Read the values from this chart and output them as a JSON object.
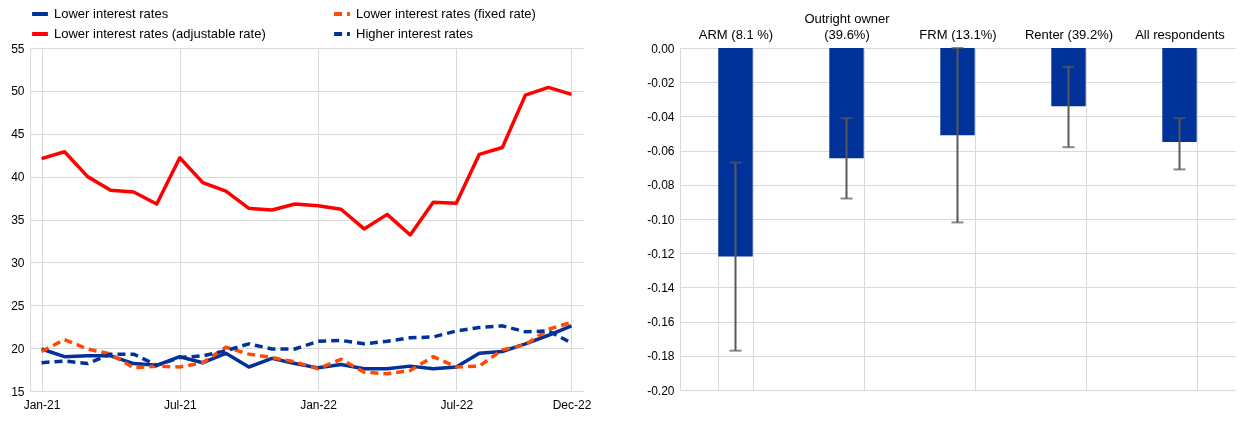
{
  "chart_data": [
    {
      "type": "line",
      "categories": [
        "Jan-21",
        null,
        null,
        null,
        null,
        null,
        "Jul-21",
        null,
        null,
        null,
        null,
        null,
        "Jan-22",
        null,
        null,
        null,
        null,
        null,
        "Jul-22",
        null,
        null,
        null,
        null,
        "Dec-22"
      ],
      "series": [
        {
          "name": "Lower interest rates",
          "color": "#003299",
          "line_style": "solid",
          "values": [
            19.9,
            19.0,
            19.1,
            19.1,
            18.2,
            18.0,
            19.0,
            18.3,
            19.4,
            17.8,
            18.8,
            18.2,
            17.7,
            18.1,
            17.6,
            17.6,
            17.9,
            17.6,
            17.8,
            19.4,
            19.6,
            20.5,
            21.5,
            22.6
          ]
        },
        {
          "name": "Lower interest rates (fixed rate)",
          "color": "#ff4b00",
          "line_style": "dashed",
          "values": [
            19.6,
            21.0,
            19.9,
            19.3,
            17.7,
            17.9,
            17.8,
            18.3,
            20.1,
            19.3,
            18.9,
            18.4,
            17.6,
            18.7,
            17.2,
            17.0,
            17.4,
            19.0,
            17.8,
            17.9,
            19.8,
            20.4,
            22.2,
            23.0
          ]
        },
        {
          "name": "Lower interest rates (adjustable rate)",
          "color": "#ff0000",
          "line_style": "solid",
          "values": [
            42.1,
            42.9,
            40.0,
            38.4,
            38.2,
            36.8,
            42.2,
            39.3,
            38.3,
            36.3,
            36.1,
            36.8,
            36.6,
            36.2,
            33.9,
            35.6,
            33.2,
            37.0,
            36.9,
            42.6,
            43.4,
            49.5,
            50.4,
            49.6
          ]
        },
        {
          "name": "Higher interest rates",
          "color": "#003299",
          "line_style": "dashed",
          "values": [
            18.3,
            18.5,
            18.2,
            19.3,
            19.3,
            18.0,
            18.9,
            19.1,
            19.7,
            20.5,
            19.9,
            19.9,
            20.8,
            20.9,
            20.5,
            20.8,
            21.2,
            21.3,
            22.0,
            22.4,
            22.6,
            21.9,
            22.0,
            20.6
          ]
        }
      ],
      "ylim": [
        15,
        55
      ],
      "yticks": [
        15,
        20,
        25,
        30,
        35,
        40,
        45,
        50,
        55
      ],
      "grid": true,
      "legend": "top"
    },
    {
      "type": "bar",
      "categories": [
        "ARM (8.1 %)",
        "Outright owner (39.6%)",
        "FRM (13.1%)",
        "Renter (39.2%)",
        "All respondents"
      ],
      "values": [
        -0.122,
        -0.0645,
        -0.051,
        -0.034,
        -0.055
      ],
      "color": "#003299",
      "errors": [
        [
          -0.177,
          -0.067
        ],
        [
          -0.088,
          -0.041
        ],
        [
          -0.102,
          0.0
        ],
        [
          -0.058,
          -0.011
        ],
        [
          -0.071,
          -0.041
        ]
      ],
      "ylim": [
        -0.2,
        0.0
      ],
      "yticks": [
        {
          "value": -0.2,
          "label": "-0.20"
        },
        {
          "value": -0.18,
          "label": "-0.18"
        },
        {
          "value": -0.16,
          "label": "-0.16"
        },
        {
          "value": -0.14,
          "label": "-0.14"
        },
        {
          "value": -0.12,
          "label": "-0.12"
        },
        {
          "value": -0.1,
          "label": "-0.10"
        },
        {
          "value": -0.08,
          "label": "-0.08"
        },
        {
          "value": -0.06,
          "label": "-0.06"
        },
        {
          "value": -0.04,
          "label": "-0.04"
        },
        {
          "value": -0.02,
          "label": "-0.02"
        },
        {
          "value": 0.0,
          "label": "0.00"
        }
      ],
      "grid": true
    }
  ]
}
